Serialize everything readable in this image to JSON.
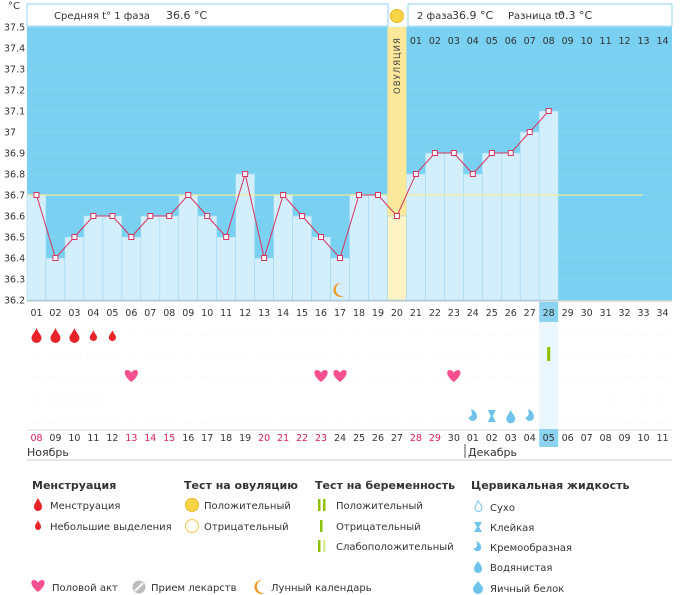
{
  "header": {
    "unit": "°C",
    "phase1_label": "Средняя t° 1 фаза",
    "phase1_value": "36.6 °C",
    "phase2_label": "2 фаза",
    "phase2_value": "36.9 °C",
    "diff_label": "Разница t°",
    "diff_value": "0.3 °C"
  },
  "chart_data": {
    "type": "line",
    "title": "",
    "xlabel": "",
    "ylabel": "°C",
    "ylim": [
      36.2,
      37.5
    ],
    "yticks": [
      "36.2",
      "36.3",
      "36.4",
      "36.5",
      "36.6",
      "36.7",
      "36.8",
      "36.9",
      "37",
      "37.1",
      "37.2",
      "37.3",
      "37.4",
      "37.5"
    ],
    "cycle_days": [
      "01",
      "02",
      "03",
      "04",
      "05",
      "06",
      "07",
      "08",
      "09",
      "10",
      "11",
      "12",
      "13",
      "14",
      "15",
      "16",
      "17",
      "18",
      "19",
      "20",
      "21",
      "22",
      "23",
      "24",
      "25",
      "26",
      "27",
      "28",
      "29",
      "30",
      "31",
      "32",
      "33",
      "34"
    ],
    "temperatures": [
      36.7,
      36.4,
      36.5,
      36.6,
      36.6,
      36.5,
      36.6,
      36.6,
      36.7,
      36.6,
      36.5,
      36.8,
      36.4,
      36.7,
      36.6,
      36.5,
      36.4,
      36.7,
      36.7,
      36.6,
      36.8,
      36.9,
      36.9,
      36.8,
      36.9,
      36.9,
      37.0,
      37.1
    ],
    "coverline": 36.7,
    "ovulation_day": 20,
    "ovulation_label": "ОВУЛЯЦИЯ",
    "luteal_days": [
      "01",
      "02",
      "03",
      "04",
      "05",
      "06",
      "07",
      "08",
      "09",
      "10",
      "11",
      "12",
      "13",
      "14"
    ],
    "current_day": 28,
    "calendar_dates": [
      "08",
      "09",
      "10",
      "11",
      "12",
      "13",
      "14",
      "15",
      "16",
      "17",
      "18",
      "19",
      "20",
      "21",
      "22",
      "23",
      "24",
      "25",
      "26",
      "27",
      "28",
      "29",
      "30",
      "01",
      "02",
      "03",
      "04",
      "05",
      "06",
      "07",
      "08",
      "09",
      "10",
      "11"
    ],
    "weekend_dates": [
      1,
      6,
      7,
      8,
      13,
      14,
      15,
      16,
      21,
      22,
      28
    ],
    "month1": "Ноябрь",
    "month2": "Декабрь",
    "symptoms": {
      "menstruation_heavy": [
        1,
        2,
        3
      ],
      "menstruation_light": [
        4,
        5
      ],
      "intercourse": [
        6,
        16,
        17,
        23
      ],
      "pregnancy_test_negative": [
        28
      ],
      "moon": [
        17
      ],
      "positive_ovulation_test": [
        20
      ],
      "cervical_fluid": [
        {
          "day": 24,
          "type": "creamy"
        },
        {
          "day": 25,
          "type": "sticky"
        },
        {
          "day": 26,
          "type": "watery"
        },
        {
          "day": 27,
          "type": "creamy"
        }
      ]
    }
  },
  "legend": {
    "menstruation_title": "Менструация",
    "menstruation_items": [
      "Менструация",
      "Небольшие выделения"
    ],
    "ovulation_test_title": "Тест на овуляцию",
    "ovulation_test_items": [
      "Положительный",
      "Отрицательный"
    ],
    "pregnancy_test_title": "Тест на беременность",
    "pregnancy_test_items": [
      "Положительный",
      "Отрицательный",
      "Слабоположительный"
    ],
    "cervical_title": "Цервикальная жидкость",
    "cervical_items": [
      "Сухо",
      "Клейкая",
      "Кремообразная",
      "Водянистая",
      "Яичный белок"
    ],
    "bottom_items": [
      "Половой акт",
      "Прием лекарств",
      "Лунный календарь"
    ]
  },
  "colors": {
    "sky": "#79d0f1",
    "bar": "#d3effb",
    "bar_stroke": "#9dd8f2",
    "ovulation": "#fbe89a",
    "line": "#d8345f",
    "menses": "#e8232a",
    "heart": "#f5508f",
    "moon": "#f29a1f",
    "test_green": "#8fc000",
    "drop_blue": "#6fc3ea",
    "weekend": "#d6215c"
  }
}
